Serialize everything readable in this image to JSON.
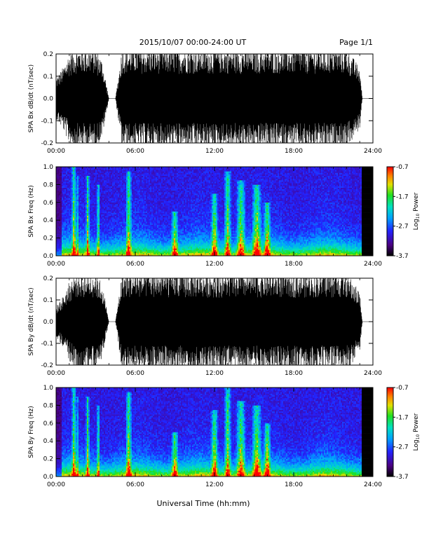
{
  "header": {
    "title": "2015/10/07  00:00-24:00 UT",
    "page": "Page 1/1"
  },
  "xaxis_label": "Universal Time (hh:mm)",
  "time_ticks": [
    "00:00",
    "06:00",
    "12:00",
    "18:00",
    "24:00"
  ],
  "colorbar": {
    "label": "Log",
    "label_sub": "10",
    "label_tail": " Power",
    "ticks": [
      "-0.7",
      "-1.7",
      "-2.7",
      "-3.7"
    ]
  },
  "chart_data": [
    {
      "type": "line",
      "ylabel": "SPA Bx dB/dt (nT/sec)",
      "xlim": [
        0,
        24
      ],
      "ylim": [
        -0.2,
        0.2
      ],
      "yticks": [
        "0.2",
        "0.1",
        "0.0",
        "-0.1",
        "-0.2"
      ],
      "series": [
        {
          "x": [
            0,
            0.5,
            1.0,
            1.5,
            2.0,
            2.5,
            3.0,
            3.5,
            4.0,
            4.5,
            5.0,
            5.5,
            6.0,
            7.0,
            8.0,
            9.0,
            10.0,
            11.0,
            12.0,
            13.0,
            14.0,
            15.0,
            16.0,
            17.0,
            18.0,
            19.0,
            20.0,
            21.0,
            22.0,
            23.0,
            23.2,
            24.0
          ],
          "amplitude": [
            0.08,
            0.12,
            0.18,
            0.2,
            0.2,
            0.2,
            0.2,
            0.15,
            0.0,
            0.0,
            0.2,
            0.2,
            0.2,
            0.2,
            0.2,
            0.2,
            0.2,
            0.2,
            0.2,
            0.2,
            0.2,
            0.2,
            0.2,
            0.2,
            0.2,
            0.2,
            0.2,
            0.2,
            0.2,
            0.12,
            0.0,
            0.0
          ]
        }
      ]
    },
    {
      "type": "heatmap",
      "ylabel": "SPA Bx Freq (Hz)",
      "xlim": [
        0,
        24
      ],
      "ylim": [
        0,
        1.0
      ],
      "yticks": [
        "1.0",
        "0.8",
        "0.6",
        "0.4",
        "0.2",
        "0.0"
      ],
      "zlim": [
        -3.7,
        -0.7
      ],
      "enhancements": [
        {
          "t": 1.35,
          "w": 0.18,
          "extent": 1.0
        },
        {
          "t": 1.6,
          "w": 0.08,
          "extent": 0.9
        },
        {
          "t": 2.4,
          "w": 0.15,
          "extent": 0.9
        },
        {
          "t": 3.2,
          "w": 0.12,
          "extent": 0.8
        },
        {
          "t": 5.5,
          "w": 0.25,
          "extent": 0.95
        },
        {
          "t": 9.0,
          "w": 0.3,
          "extent": 0.5
        },
        {
          "t": 12.0,
          "w": 0.3,
          "extent": 0.7
        },
        {
          "t": 13.0,
          "w": 0.3,
          "extent": 0.95
        },
        {
          "t": 14.0,
          "w": 0.4,
          "extent": 0.85
        },
        {
          "t": 15.2,
          "w": 0.4,
          "extent": 0.8
        },
        {
          "t": 16.0,
          "w": 0.3,
          "extent": 0.6
        }
      ]
    },
    {
      "type": "line",
      "ylabel": "SPA By dB/dt (nT/sec)",
      "xlim": [
        0,
        24
      ],
      "ylim": [
        -0.2,
        0.2
      ],
      "yticks": [
        "0.2",
        "0.1",
        "0.0",
        "-0.1",
        "-0.2"
      ],
      "series": [
        {
          "x": [
            0,
            0.5,
            1.0,
            1.5,
            2.0,
            2.5,
            3.0,
            3.5,
            4.0,
            4.5,
            5.0,
            5.5,
            6.0,
            7.0,
            8.0,
            9.0,
            10.0,
            11.0,
            12.0,
            13.0,
            14.0,
            15.0,
            16.0,
            17.0,
            18.0,
            19.0,
            20.0,
            21.0,
            22.0,
            23.0,
            23.2,
            24.0
          ],
          "amplitude": [
            0.06,
            0.1,
            0.16,
            0.2,
            0.2,
            0.2,
            0.2,
            0.15,
            0.0,
            0.0,
            0.2,
            0.2,
            0.2,
            0.2,
            0.2,
            0.2,
            0.2,
            0.2,
            0.2,
            0.2,
            0.2,
            0.2,
            0.2,
            0.2,
            0.2,
            0.2,
            0.2,
            0.2,
            0.2,
            0.12,
            0.0,
            0.0
          ]
        }
      ]
    },
    {
      "type": "heatmap",
      "ylabel": "SPA By Freq (Hz)",
      "xlim": [
        0,
        24
      ],
      "ylim": [
        0,
        1.0
      ],
      "yticks": [
        "1.0",
        "0.8",
        "0.6",
        "0.4",
        "0.2",
        "0.0"
      ],
      "zlim": [
        -3.7,
        -0.7
      ],
      "enhancements": [
        {
          "t": 1.35,
          "w": 0.18,
          "extent": 1.0
        },
        {
          "t": 1.6,
          "w": 0.08,
          "extent": 0.9
        },
        {
          "t": 2.4,
          "w": 0.15,
          "extent": 0.9
        },
        {
          "t": 3.2,
          "w": 0.12,
          "extent": 0.8
        },
        {
          "t": 5.5,
          "w": 0.25,
          "extent": 0.95
        },
        {
          "t": 9.0,
          "w": 0.3,
          "extent": 0.5
        },
        {
          "t": 12.0,
          "w": 0.3,
          "extent": 0.75
        },
        {
          "t": 13.0,
          "w": 0.3,
          "extent": 1.0
        },
        {
          "t": 14.0,
          "w": 0.4,
          "extent": 0.85
        },
        {
          "t": 15.2,
          "w": 0.4,
          "extent": 0.8
        },
        {
          "t": 16.0,
          "w": 0.3,
          "extent": 0.6
        }
      ]
    }
  ]
}
